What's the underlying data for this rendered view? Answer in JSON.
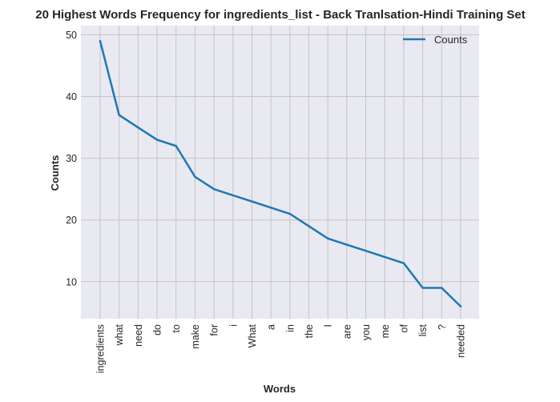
{
  "chart_data": {
    "type": "line",
    "title": "20 Highest Words Frequency for ingredients_list - Back Tranlsation-Hindi Training Set",
    "xlabel": "Words",
    "ylabel": "Counts",
    "categories": [
      "ingredients",
      "what",
      "need",
      "do",
      "to",
      "make",
      "for",
      "i",
      "What",
      "a",
      "in",
      "the",
      "I",
      "are",
      "you",
      "me",
      "of",
      "list",
      "?",
      "needed"
    ],
    "series": [
      {
        "name": "Counts",
        "values": [
          49,
          37,
          35,
          33,
          32,
          27,
          25,
          24,
          23,
          22,
          21,
          19,
          17,
          16,
          15,
          14,
          13,
          9,
          9,
          6
        ],
        "color": "#1f77b4"
      }
    ],
    "yticks": [
      10,
      20,
      30,
      40,
      50
    ],
    "ylim": [
      4,
      51.5
    ],
    "grid": true,
    "legend_position": "top-right",
    "colors": {
      "plot_background": "#e9e9f1",
      "grid": "#c4c4c4",
      "line": "#1f77b4"
    }
  }
}
